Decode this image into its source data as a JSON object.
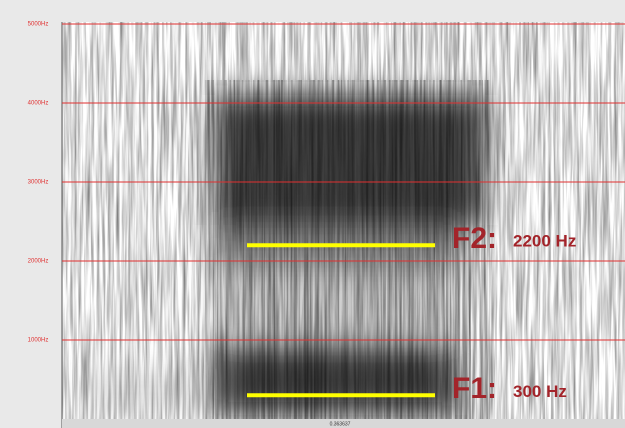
{
  "chart_data": {
    "type": "spectrogram",
    "ylim": [
      0,
      5000
    ],
    "yticks": [
      {
        "value": 1000,
        "label": "1000Hz"
      },
      {
        "value": 2000,
        "label": "2000Hz"
      },
      {
        "value": 3000,
        "label": "3000Hz"
      },
      {
        "value": 4000,
        "label": "4000Hz"
      },
      {
        "value": 5000,
        "label": "5000Hz"
      }
    ],
    "grid": true,
    "grid_color": "#e03030",
    "x_label": "0.363637",
    "formant_color": "#ffff00",
    "formants": [
      {
        "name": "F2:",
        "label": "2200 Hz",
        "value": 2200
      },
      {
        "name": "F1:",
        "label": "300 Hz",
        "value": 300
      }
    ]
  }
}
